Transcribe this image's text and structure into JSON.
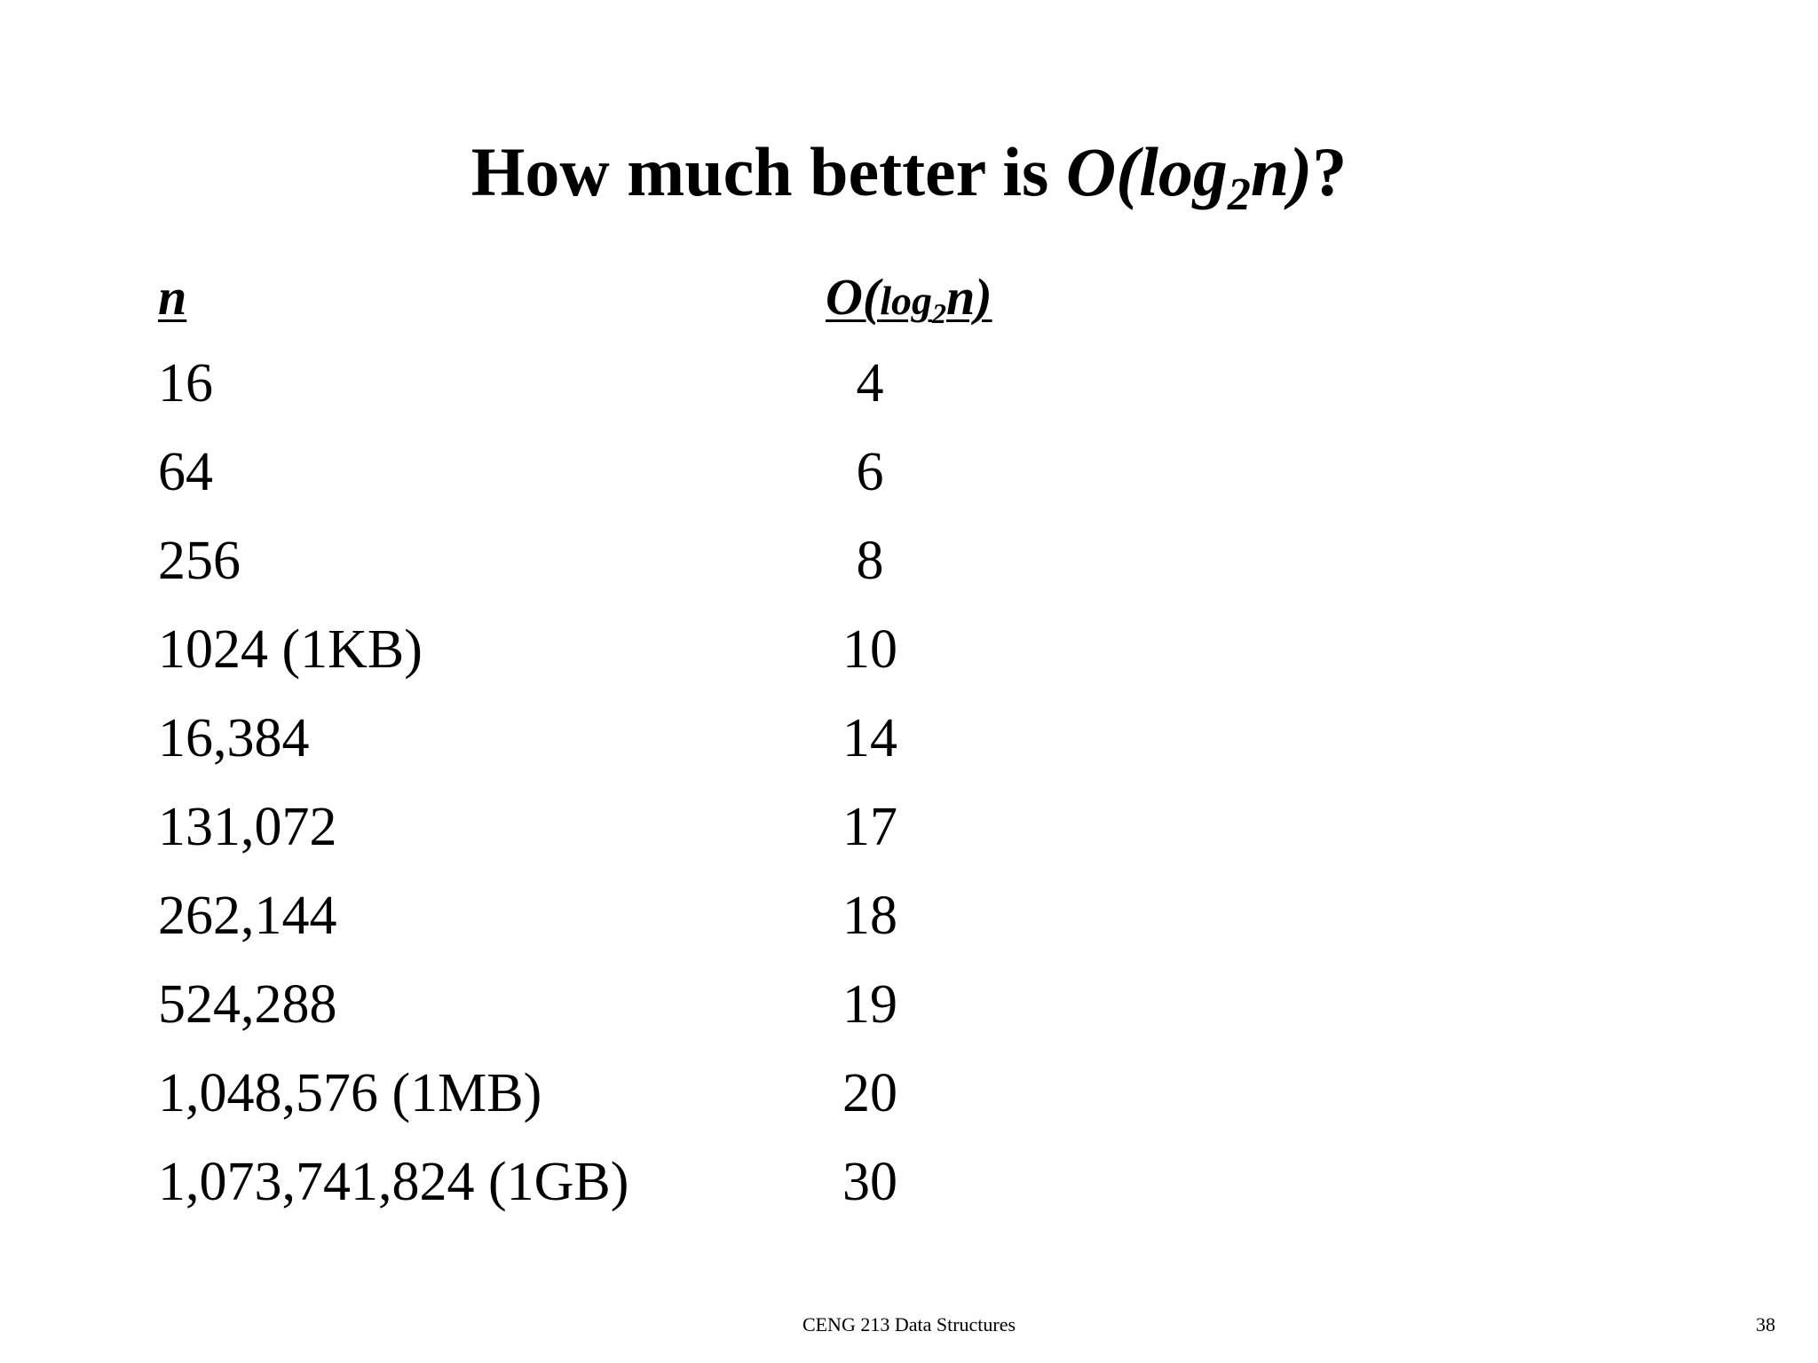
{
  "title": {
    "prefix": "How much better is ",
    "expr_start": "O(log",
    "expr_sub": "2",
    "expr_end": "n)",
    "suffix": "?"
  },
  "columns": {
    "n_header": "n",
    "log_header_start": "O(",
    "log_header_log": "log",
    "log_header_sub": "2",
    "log_header_end": "n)"
  },
  "rows": [
    {
      "n": "16",
      "log": "4"
    },
    {
      "n": "64",
      "log": "6"
    },
    {
      "n": "256",
      "log": "8"
    },
    {
      "n": "1024 (1KB)",
      "log": "10"
    },
    {
      "n": "16,384",
      "log": "14"
    },
    {
      "n": "131,072",
      "log": "17"
    },
    {
      "n": "262,144",
      "log": "18"
    },
    {
      "n": "524,288",
      "log": "19"
    },
    {
      "n": "1,048,576 (1MB)",
      "log": "20"
    },
    {
      "n": "1,073,741,824 (1GB)",
      "log": "30"
    }
  ],
  "footer": {
    "course": "CENG 213 Data Structures",
    "page_number": "38"
  }
}
